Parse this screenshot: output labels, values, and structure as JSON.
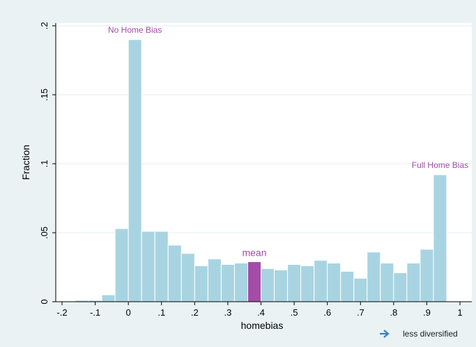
{
  "chart_data": {
    "type": "bar",
    "title": "",
    "xlabel": "homebias",
    "ylabel": "Fraction",
    "xlim": [
      -0.2,
      1.0
    ],
    "ylim": [
      0,
      0.2
    ],
    "grid": true,
    "x_ticks": [
      "-.2",
      "-.1",
      "0",
      ".1",
      ".2",
      ".3",
      ".4",
      ".5",
      ".6",
      ".7",
      ".8",
      ".9",
      "1"
    ],
    "y_ticks": [
      "0",
      ".05",
      ".1",
      ".15",
      ".2"
    ],
    "bin_width": 0.04,
    "bins": [
      {
        "x0": -0.2,
        "value": 0.0
      },
      {
        "x0": -0.16,
        "value": 0.001
      },
      {
        "x0": -0.12,
        "value": 0.001
      },
      {
        "x0": -0.08,
        "value": 0.005
      },
      {
        "x0": -0.04,
        "value": 0.053
      },
      {
        "x0": 0.0,
        "value": 0.19
      },
      {
        "x0": 0.04,
        "value": 0.051
      },
      {
        "x0": 0.08,
        "value": 0.051
      },
      {
        "x0": 0.12,
        "value": 0.041
      },
      {
        "x0": 0.16,
        "value": 0.035
      },
      {
        "x0": 0.2,
        "value": 0.026
      },
      {
        "x0": 0.24,
        "value": 0.031
      },
      {
        "x0": 0.28,
        "value": 0.027
      },
      {
        "x0": 0.32,
        "value": 0.028
      },
      {
        "x0": 0.36,
        "value": 0.029,
        "highlight": true
      },
      {
        "x0": 0.4,
        "value": 0.024
      },
      {
        "x0": 0.44,
        "value": 0.023
      },
      {
        "x0": 0.48,
        "value": 0.027
      },
      {
        "x0": 0.52,
        "value": 0.026
      },
      {
        "x0": 0.56,
        "value": 0.03
      },
      {
        "x0": 0.6,
        "value": 0.028
      },
      {
        "x0": 0.64,
        "value": 0.022
      },
      {
        "x0": 0.68,
        "value": 0.017
      },
      {
        "x0": 0.72,
        "value": 0.036
      },
      {
        "x0": 0.76,
        "value": 0.028
      },
      {
        "x0": 0.8,
        "value": 0.021
      },
      {
        "x0": 0.84,
        "value": 0.028
      },
      {
        "x0": 0.88,
        "value": 0.038
      },
      {
        "x0": 0.92,
        "value": 0.092
      }
    ],
    "annotations": {
      "no_home_bias": {
        "text": "No Home Bias",
        "x": 0.02,
        "y": 0.195
      },
      "full_home_bias": {
        "text": "Full Home Bias",
        "x": 0.94,
        "y": 0.097
      },
      "mean": {
        "text": "mean",
        "x": 0.38,
        "y": 0.033
      }
    },
    "footer_note": "less diversified",
    "colors": {
      "bar": "#a8d4e2",
      "bar_edge": "#ffffff",
      "highlight": "#a34ca8",
      "annotation": "#a34ca8",
      "arrow": "#3d7fc4",
      "plot_bg": "#ffffff",
      "page_bg": "#eaf2f3",
      "grid": "#e3eef0"
    }
  }
}
